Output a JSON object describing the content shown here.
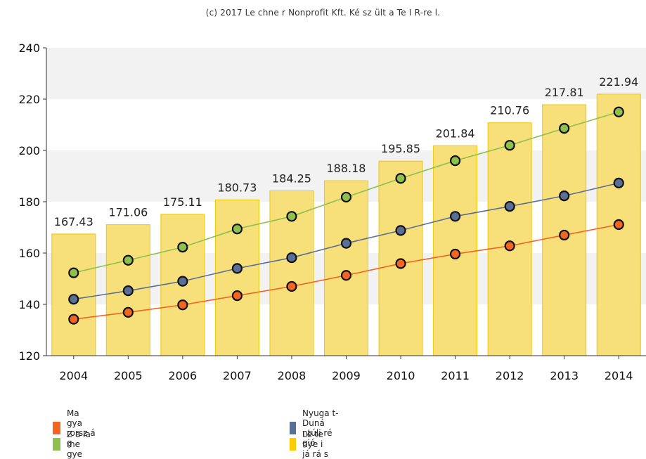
{
  "copyright": "(c) 2017 Le chne r Nonprofit Kft. Ké sz ült a  Te I R-re l.",
  "colors": {
    "bar_fill": "#f7df7a",
    "bar_stroke": "#f0c800",
    "band": "#f2f2f2",
    "magyarorszag": "#f26522",
    "regio": "#5b6f96",
    "megye": "#8fc04e"
  },
  "chart_data": {
    "type": "bar",
    "categories": [
      "2004",
      "2005",
      "2006",
      "2007",
      "2008",
      "2009",
      "2010",
      "2011",
      "2012",
      "2013",
      "2014"
    ],
    "ylim": [
      120,
      240
    ],
    "yticks": [
      120,
      140,
      160,
      180,
      200,
      220,
      240
    ],
    "grid": "alternating horizontal bands",
    "legend_position": "bottom",
    "bars": {
      "name": "Le te nye i já rá s",
      "values": [
        167.43,
        171.06,
        175.11,
        180.73,
        184.25,
        188.18,
        195.85,
        201.84,
        210.76,
        217.81,
        221.94
      ],
      "data_labels": [
        "167.43",
        "171.06",
        "175.11",
        "180.73",
        "184.25",
        "188.18",
        "195.85",
        "201.84",
        "210.76",
        "217.81",
        "221.94"
      ]
    },
    "series": [
      {
        "key": "megye",
        "name": "Z a la  me gye",
        "values": [
          152.3,
          157.2,
          162.3,
          169.4,
          174.3,
          181.8,
          189.1,
          196.0,
          202.0,
          208.6,
          215.0
        ]
      },
      {
        "key": "regio",
        "name": "Nyuga t-Duná ntúli ré gió",
        "values": [
          142.0,
          145.3,
          149.0,
          154.0,
          158.2,
          163.8,
          168.8,
          174.3,
          178.2,
          182.3,
          187.3
        ]
      },
      {
        "key": "magyarorszag",
        "name": "Ma gya rorsz á g",
        "values": [
          134.2,
          136.9,
          139.8,
          143.4,
          147.0,
          151.3,
          155.9,
          159.6,
          162.8,
          167.0,
          171.1
        ]
      }
    ]
  },
  "legend": [
    {
      "key": "magyarorszag",
      "label": "Ma gya rorsz á g",
      "color": "#f26522"
    },
    {
      "key": "regio",
      "label": "Nyuga t-Duná ntúli ré gió",
      "color": "#5b6f96"
    },
    {
      "key": "megye",
      "label": "Z a la  me gye",
      "color": "#8fc04e"
    },
    {
      "key": "jaras",
      "label": "Le te nye i já rá s",
      "color": "#ffcc00"
    }
  ]
}
